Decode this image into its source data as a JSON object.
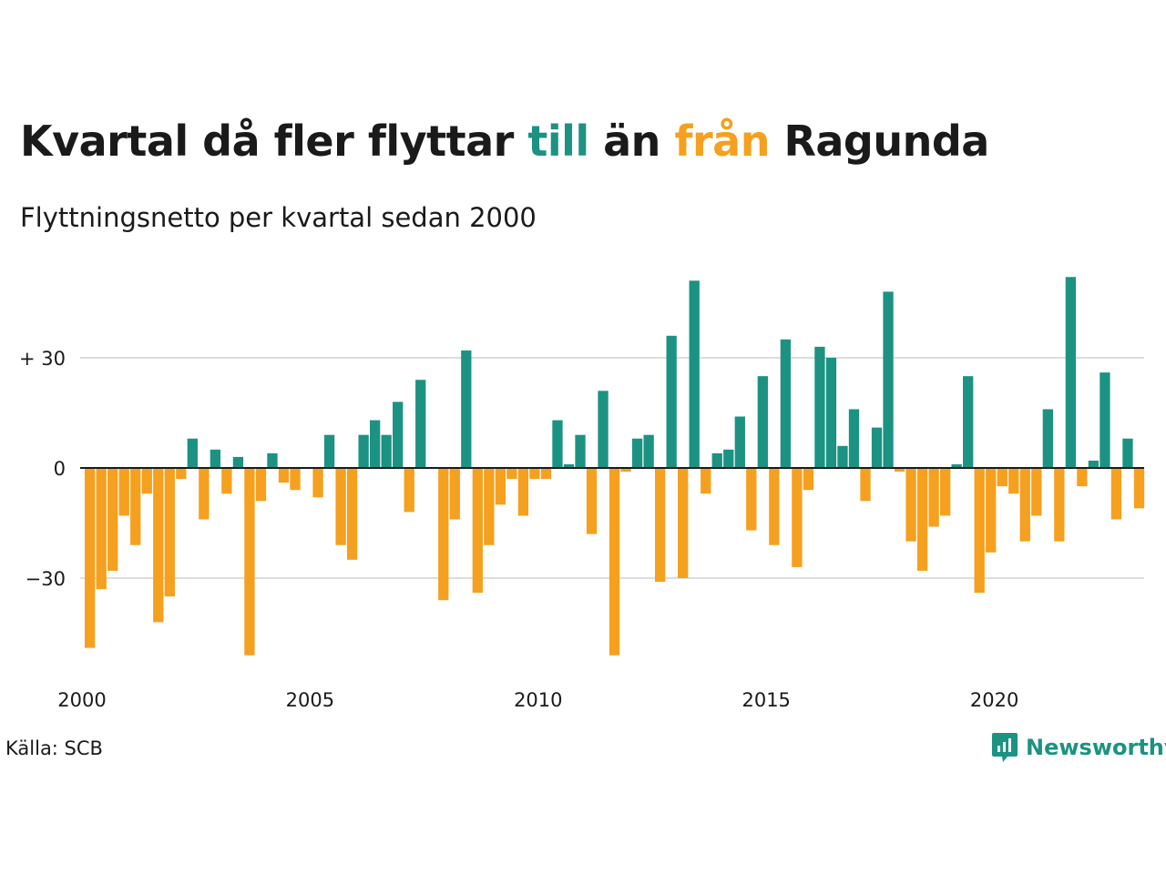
{
  "title": {
    "part1": "Kvartal då fler flyttar ",
    "pos_word": "till",
    "part2": " än ",
    "neg_word": "från",
    "part3": " Ragunda"
  },
  "subtitle": "Flyttningsnetto per kvartal sedan 2000",
  "source": "Källa: SCB",
  "brand": {
    "name": "Newsworthy",
    "icon": "newsworthy-logo-icon"
  },
  "colors": {
    "positive": "#1c9283",
    "negative": "#f5a01e",
    "grid": "#dddddd",
    "zero": "#1a1a1a"
  },
  "chart_data": {
    "type": "bar",
    "title": "Kvartal då fler flyttar till än från Ragunda",
    "subtitle": "Flyttningsnetto per kvartal sedan 2000",
    "x_start_year": 2000,
    "periods_per_year": 4,
    "x_ticks": [
      "2000",
      "2005",
      "2010",
      "2015",
      "2020"
    ],
    "y_ticks": [
      {
        "value": 30,
        "label": "+ 30"
      },
      {
        "value": 0,
        "label": "0"
      },
      {
        "value": -30,
        "label": "−30"
      }
    ],
    "ylim": [
      -55,
      55
    ],
    "grid": true,
    "values": [
      -49,
      -33,
      -28,
      -13,
      -21,
      -7,
      -42,
      -35,
      -3,
      8,
      -14,
      5,
      -7,
      3,
      -51,
      -9,
      4,
      -4,
      -6,
      0,
      -8,
      9,
      -21,
      -25,
      9,
      13,
      9,
      18,
      -12,
      24,
      0,
      -36,
      -14,
      32,
      -34,
      -21,
      -10,
      -3,
      -13,
      -3,
      -3,
      13,
      1,
      9,
      -18,
      21,
      -51,
      -1,
      8,
      9,
      -31,
      36,
      -30,
      51,
      -7,
      4,
      5,
      14,
      -17,
      25,
      -21,
      35,
      -27,
      -6,
      33,
      30,
      6,
      16,
      -9,
      11,
      48,
      -1,
      -20,
      -28,
      -16,
      -13,
      1,
      25,
      -34,
      -23,
      -5,
      -7,
      -20,
      -13,
      16,
      -20,
      52,
      -5,
      2,
      26,
      -14,
      8,
      -11
    ]
  }
}
